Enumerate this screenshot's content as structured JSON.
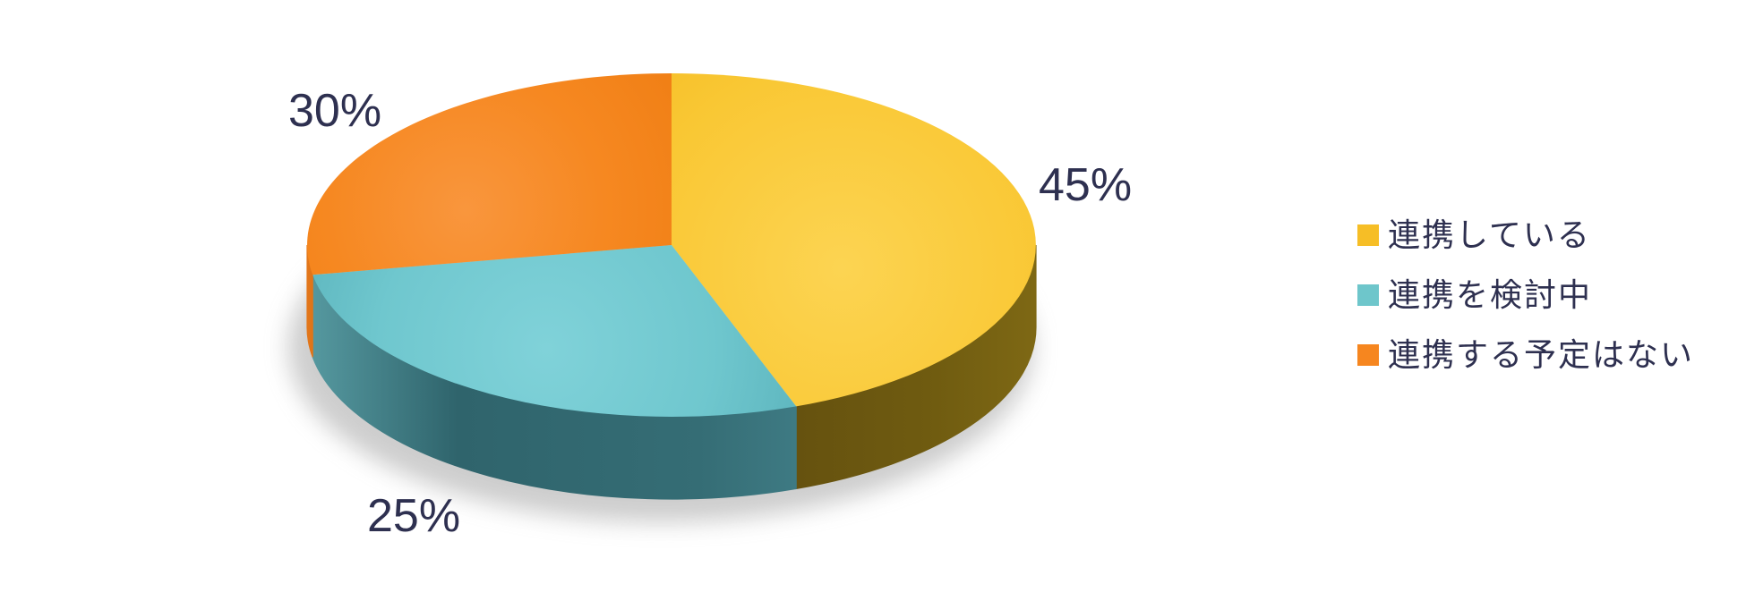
{
  "chart_data": {
    "type": "pie",
    "style": "3d",
    "title": "",
    "background_color": "#FFFFFF",
    "value_label_color": "#2E3050",
    "direction": "clockwise",
    "start_angle_deg": 0,
    "legend_position": "right",
    "grid": false,
    "slices": [
      {
        "label": "連携している",
        "value": 45,
        "display_label": "45%",
        "color": "#F6BE26"
      },
      {
        "label": "連携を検討中",
        "value": 25,
        "display_label": "25%",
        "color": "#6EC6CB"
      },
      {
        "label": "連携する予定はない",
        "value": 30,
        "display_label": "30%",
        "color": "#F6861F"
      }
    ],
    "projected_boundaries_deg": [
      0,
      160,
      260,
      360
    ]
  },
  "legend": {
    "items": [
      {
        "label": "連携している",
        "swatch_color": "#F6BE26"
      },
      {
        "label": "連携を検討中",
        "swatch_color": "#6EC6CB"
      },
      {
        "label": "連携する予定はない",
        "swatch_color": "#F6861F"
      }
    ]
  }
}
